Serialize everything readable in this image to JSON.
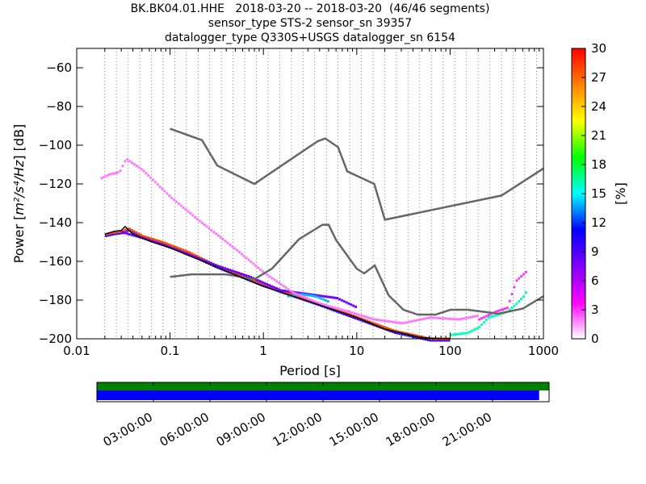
{
  "chart_data": [
    {
      "type": "heatmap",
      "title_lines": [
        "BK.BK04.01.HHE   2018-03-20 -- 2018-03-20  (46/46 segments)",
        "sensor_type STS-2 sensor_sn 39357",
        "datalogger_type Q330S+USGS datalogger_sn 6154"
      ],
      "xlabel": "Period [s]",
      "ylabel_prefix": "Power [",
      "ylabel_math": "m²/s⁴/Hz",
      "ylabel_suffix": "] [dB]",
      "x_scale": "log",
      "xlim": [
        0.01,
        1000
      ],
      "ylim": [
        -200,
        -50
      ],
      "xticks": [
        "0.01",
        "0.1",
        "1",
        "10",
        "100",
        "1000"
      ],
      "yticks": [
        "−60",
        "−80",
        "−100",
        "−120",
        "−140",
        "−160",
        "−180",
        "−200"
      ],
      "grid": "dotted vertical lines at period bins",
      "colorbar": {
        "label": "[%]",
        "min": 0,
        "max": 30,
        "ticks": [
          "0",
          "3",
          "6",
          "9",
          "12",
          "15",
          "18",
          "21",
          "24",
          "27",
          "30"
        ],
        "colors": [
          "#ffffff",
          "#ff00ff",
          "#8000ff",
          "#0000ff",
          "#00ffff",
          "#00ff00",
          "#ffff00",
          "#ff8000",
          "#ff0000"
        ]
      },
      "series": [
        {
          "name": "NHNM",
          "color": "#666666",
          "x": [
            0.1,
            0.22,
            0.32,
            0.8,
            3.8,
            4.6,
            6.3,
            7.9,
            15.4,
            20,
            354.8,
            1000
          ],
          "y": [
            -91.5,
            -97.4,
            -110.5,
            -120,
            -98,
            -96.5,
            -101,
            -113.5,
            -120,
            -138.5,
            -126,
            -112
          ]
        },
        {
          "name": "NLNM",
          "color": "#666666",
          "x": [
            0.1,
            0.17,
            0.4,
            0.8,
            1.24,
            2.4,
            4.3,
            5,
            6,
            10,
            12,
            15.6,
            21.9,
            31.6,
            45,
            70,
            101,
            154,
            328,
            600,
            1000
          ],
          "y": [
            -168,
            -166.7,
            -166.7,
            -169.2,
            -163.7,
            -148.6,
            -141.1,
            -141.1,
            -149,
            -163.8,
            -166.2,
            -162.1,
            -177.5,
            -185,
            -187.5,
            -187.5,
            -185,
            -185,
            -187,
            -184.4,
            -178
          ]
        },
        {
          "name": "mode",
          "color": "#000000",
          "x": [
            0.02,
            0.025,
            0.03,
            0.033,
            0.04,
            0.06,
            0.1,
            0.2,
            0.5,
            1,
            3,
            10,
            20,
            50,
            100
          ],
          "y": [
            -146,
            -144.5,
            -144,
            -142,
            -146,
            -149.5,
            -153,
            -159,
            -167,
            -173,
            -180.5,
            -189,
            -195,
            -199.5,
            -200
          ]
        }
      ],
      "density_bands": [
        {
          "x": [
            0.02,
            0.025,
            0.03,
            0.035,
            0.05,
            0.08,
            0.15,
            0.3,
            0.7,
            1.5,
            4,
            10,
            25,
            60,
            100
          ],
          "y": [
            -146,
            -145,
            -144.5,
            -143,
            -147,
            -150,
            -155,
            -162,
            -169,
            -175,
            -182,
            -189,
            -196,
            -200,
            -200
          ],
          "pct": 28
        },
        {
          "x": [
            0.03,
            0.05,
            0.1,
            0.3,
            0.7,
            1.5,
            3,
            6,
            10
          ],
          "y": [
            -145,
            -148,
            -153,
            -162,
            -168,
            -175,
            -177,
            -179,
            -184
          ],
          "pct": 8
        },
        {
          "x": [
            1.8,
            2.5,
            3.5,
            5
          ],
          "y": [
            -178,
            -177,
            -178,
            -181
          ],
          "pct": 14
        },
        {
          "x": [
            0.018,
            0.022,
            0.028,
            0.033,
            0.05,
            0.1,
            0.2,
            0.5,
            1,
            2,
            4,
            8,
            15,
            30,
            60,
            120,
            200
          ],
          "y": [
            -117,
            -115,
            -114,
            -107,
            -113,
            -127,
            -139,
            -154,
            -166,
            -176,
            -182,
            -186,
            -190,
            -192,
            -189,
            -190,
            -188
          ],
          "pct": 2
        },
        {
          "x": [
            200,
            300,
            400,
            500,
            650
          ],
          "y": [
            -190,
            -186,
            -184,
            -170,
            -165
          ],
          "pct": 3
        },
        {
          "x": [
            100,
            150,
            200,
            250,
            300,
            400,
            500,
            600,
            650
          ],
          "y": [
            -198,
            -197,
            -194,
            -189,
            -188,
            -186,
            -182,
            -178,
            -175
          ],
          "pct": 16
        }
      ]
    },
    {
      "type": "timeline",
      "ticks": [
        "03:00:00",
        "06:00:00",
        "09:00:00",
        "12:00:00",
        "15:00:00",
        "18:00:00",
        "21:00:00"
      ],
      "bars": [
        {
          "name": "data availability",
          "color": "#008000",
          "fraction": 1.0
        },
        {
          "name": "psd segments",
          "color": "#0000ff",
          "fraction": 0.978
        }
      ]
    }
  ]
}
